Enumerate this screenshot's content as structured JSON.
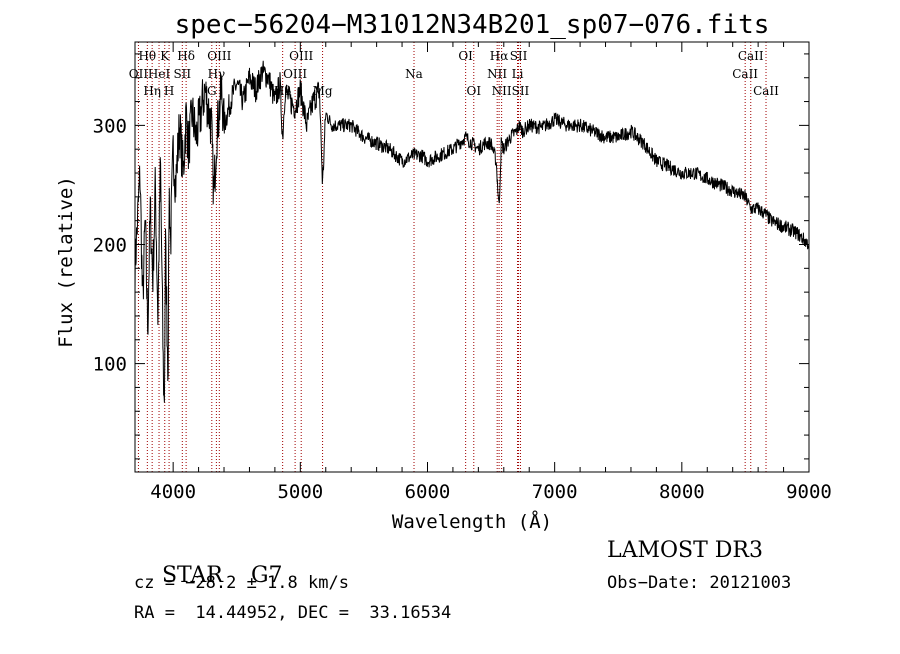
{
  "chart_data": {
    "type": "line",
    "title": "spec−56204−M31012N34B201_sp07−076.fits",
    "xlabel": "Wavelength (Å)",
    "ylabel": "Flux (relative)",
    "xlim": [
      3700,
      9000
    ],
    "ylim": [
      9,
      370
    ],
    "xticks": [
      4000,
      5000,
      6000,
      7000,
      8000,
      9000
    ],
    "yticks": [
      100,
      200,
      300
    ],
    "series": [
      {
        "name": "flux",
        "color": "#000000",
        "x": [
          3700,
          3740,
          3760,
          3780,
          3800,
          3820,
          3840,
          3860,
          3880,
          3900,
          3920,
          3930,
          3940,
          3960,
          3968,
          3980,
          4000,
          4020,
          4050,
          4080,
          4102,
          4120,
          4150,
          4180,
          4200,
          4250,
          4300,
          4320,
          4340,
          4360,
          4380,
          4400,
          4450,
          4500,
          4550,
          4600,
          4650,
          4700,
          4750,
          4800,
          4840,
          4861,
          4880,
          4920,
          4960,
          5000,
          5050,
          5100,
          5150,
          5175,
          5200,
          5250,
          5300,
          5400,
          5500,
          5600,
          5700,
          5800,
          5890,
          5950,
          6000,
          6100,
          6200,
          6300,
          6400,
          6450,
          6500,
          6540,
          6563,
          6580,
          6600,
          6650,
          6700,
          6720,
          6750,
          6800,
          6900,
          7000,
          7100,
          7200,
          7300,
          7400,
          7500,
          7600,
          7700,
          7800,
          7900,
          8000,
          8100,
          8200,
          8300,
          8400,
          8498,
          8542,
          8600,
          8662,
          8700,
          8800,
          8900,
          8950,
          9000
        ],
        "y": [
          180,
          260,
          150,
          220,
          130,
          230,
          170,
          250,
          140,
          270,
          110,
          60,
          200,
          90,
          250,
          200,
          280,
          250,
          300,
          260,
          310,
          280,
          310,
          290,
          300,
          330,
          300,
          240,
          290,
          310,
          330,
          300,
          320,
          335,
          320,
          340,
          330,
          345,
          340,
          320,
          335,
          290,
          330,
          320,
          315,
          330,
          300,
          320,
          330,
          250,
          310,
          300,
          300,
          300,
          290,
          285,
          280,
          270,
          275,
          275,
          270,
          275,
          280,
          290,
          280,
          285,
          285,
          270,
          230,
          285,
          280,
          290,
          295,
          300,
          295,
          300,
          298,
          305,
          300,
          300,
          295,
          290,
          290,
          295,
          285,
          270,
          265,
          260,
          260,
          255,
          250,
          245,
          240,
          230,
          230,
          225,
          220,
          215,
          210,
          205,
          200
        ]
      }
    ],
    "spectral_lines": [
      {
        "label": "OII",
        "wavelength": 3727,
        "row": 2
      },
      {
        "label": "Hθ",
        "wavelength": 3797,
        "row": 1
      },
      {
        "label": "Hη",
        "wavelength": 3835,
        "row": 3
      },
      {
        "label": "HeI",
        "wavelength": 3889,
        "row": 2
      },
      {
        "label": "K",
        "wavelength": 3934,
        "row": 1
      },
      {
        "label": "H",
        "wavelength": 3968,
        "row": 3
      },
      {
        "label": "SII",
        "wavelength": 4072,
        "row": 2
      },
      {
        "label": "Hδ",
        "wavelength": 4102,
        "row": 1
      },
      {
        "label": "G",
        "wavelength": 4304,
        "row": 3
      },
      {
        "label": "Hγ",
        "wavelength": 4340,
        "row": 2
      },
      {
        "label": "OIII",
        "wavelength": 4363,
        "row": 1
      },
      {
        "label": "Hβ",
        "wavelength": 4861,
        "row": 3
      },
      {
        "label": "OIII",
        "wavelength": 4959,
        "row": 2
      },
      {
        "label": "OIII",
        "wavelength": 5007,
        "row": 1
      },
      {
        "label": "Mg",
        "wavelength": 5175,
        "row": 3
      },
      {
        "label": "Na",
        "wavelength": 5894,
        "row": 2
      },
      {
        "label": "OI",
        "wavelength": 6300,
        "row": 1
      },
      {
        "label": "OI",
        "wavelength": 6364,
        "row": 3
      },
      {
        "label": "NII",
        "wavelength": 6548,
        "row": 2
      },
      {
        "label": "Hα",
        "wavelength": 6563,
        "row": 1
      },
      {
        "label": "NII",
        "wavelength": 6583,
        "row": 3
      },
      {
        "label": "SII",
        "wavelength": 6716,
        "row": 1
      },
      {
        "label": "Li",
        "wavelength": 6708,
        "row": 2
      },
      {
        "label": "SII",
        "wavelength": 6731,
        "row": 3
      },
      {
        "label": "CaII",
        "wavelength": 8498,
        "row": 2
      },
      {
        "label": "CaII",
        "wavelength": 8542,
        "row": 1
      },
      {
        "label": "CaII",
        "wavelength": 8662,
        "row": 3
      }
    ],
    "line_color": "#a00000"
  },
  "info": {
    "class_label": "STAR",
    "subclass": "G7",
    "survey": "LAMOST DR3",
    "redshift_text": "cz = −28.2 ± 1.8 km/s",
    "obs_date": "Obs−Date: 20121003",
    "coords": "RA =  14.44952, DEC =  33.16534"
  }
}
